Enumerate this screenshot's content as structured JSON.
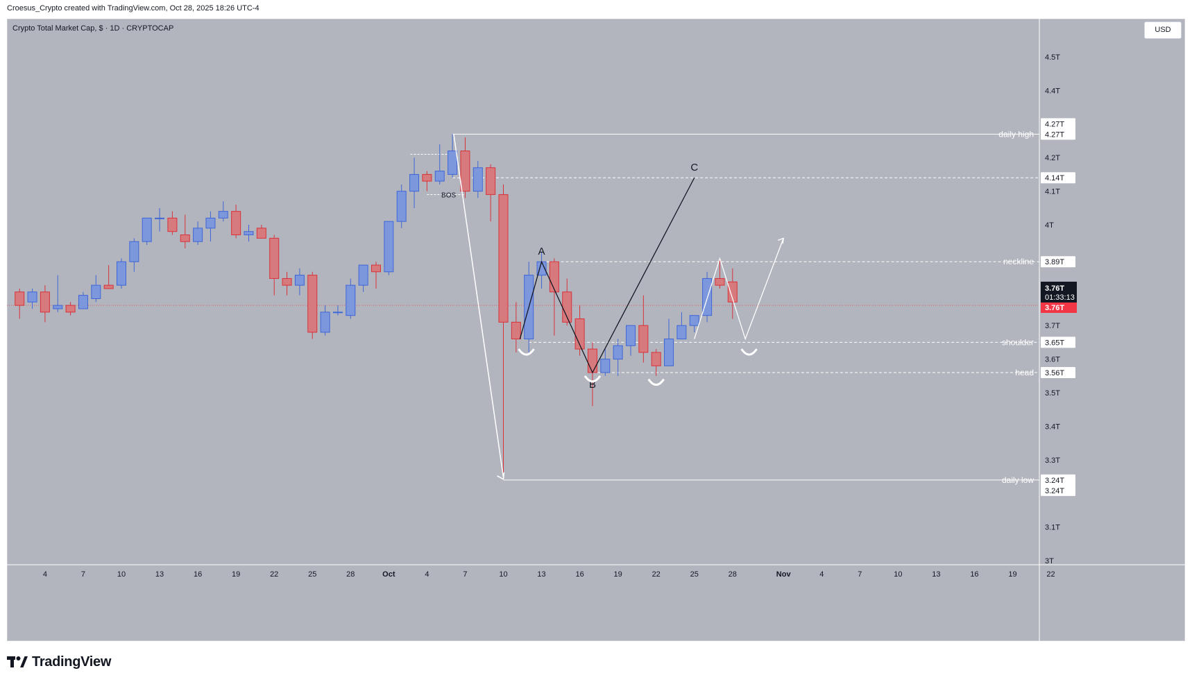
{
  "header": {
    "attribution": "Croesus_Crypto created with TradingView.com, Oct 28, 2025 18:26 UTC-4",
    "symbol_title": "Crypto Total Market Cap, $ · 1D · CRYPTOCAP",
    "currency": "USD",
    "brand": "TradingView"
  },
  "chart_data": {
    "type": "candlestick",
    "y_unit": "T",
    "ylim": [
      2.98,
      4.6
    ],
    "y_ticks": [
      {
        "value": 4.5,
        "label": "4.5T"
      },
      {
        "value": 4.4,
        "label": "4.4T"
      },
      {
        "value": 4.2,
        "label": "4.2T"
      },
      {
        "value": 4.1,
        "label": "4.1T"
      },
      {
        "value": 4.0,
        "label": "4T"
      },
      {
        "value": 3.7,
        "label": "3.7T"
      },
      {
        "value": 3.6,
        "label": "3.6T"
      },
      {
        "value": 3.5,
        "label": "3.5T"
      },
      {
        "value": 3.4,
        "label": "3.4T"
      },
      {
        "value": 3.3,
        "label": "3.3T"
      },
      {
        "value": 3.1,
        "label": "3.1T"
      },
      {
        "value": 3.0,
        "label": "3T"
      }
    ],
    "x_ticks": [
      {
        "day": 4,
        "label": "4"
      },
      {
        "day": 7,
        "label": "7"
      },
      {
        "day": 10,
        "label": "10"
      },
      {
        "day": 13,
        "label": "13"
      },
      {
        "day": 16,
        "label": "16"
      },
      {
        "day": 19,
        "label": "19"
      },
      {
        "day": 22,
        "label": "22"
      },
      {
        "day": 25,
        "label": "25"
      },
      {
        "day": 28,
        "label": "28"
      },
      {
        "day": 31,
        "label": "Oct"
      },
      {
        "day": 34,
        "label": "4"
      },
      {
        "day": 37,
        "label": "7"
      },
      {
        "day": 40,
        "label": "10"
      },
      {
        "day": 43,
        "label": "13"
      },
      {
        "day": 46,
        "label": "16"
      },
      {
        "day": 49,
        "label": "19"
      },
      {
        "day": 52,
        "label": "22"
      },
      {
        "day": 55,
        "label": "25"
      },
      {
        "day": 58,
        "label": "28"
      },
      {
        "day": 62,
        "label": "Nov"
      },
      {
        "day": 65,
        "label": "4"
      },
      {
        "day": 68,
        "label": "7"
      },
      {
        "day": 71,
        "label": "10"
      },
      {
        "day": 74,
        "label": "13"
      },
      {
        "day": 77,
        "label": "16"
      },
      {
        "day": 80,
        "label": "19"
      },
      {
        "day": 83,
        "label": "22"
      }
    ],
    "candles": [
      {
        "day": 2,
        "o": 3.8,
        "h": 3.81,
        "l": 3.72,
        "c": 3.76
      },
      {
        "day": 3,
        "o": 3.77,
        "h": 3.81,
        "l": 3.75,
        "c": 3.8
      },
      {
        "day": 4,
        "o": 3.8,
        "h": 3.82,
        "l": 3.71,
        "c": 3.74
      },
      {
        "day": 5,
        "o": 3.75,
        "h": 3.85,
        "l": 3.74,
        "c": 3.76
      },
      {
        "day": 6,
        "o": 3.76,
        "h": 3.77,
        "l": 3.73,
        "c": 3.74
      },
      {
        "day": 7,
        "o": 3.75,
        "h": 3.8,
        "l": 3.75,
        "c": 3.79
      },
      {
        "day": 8,
        "o": 3.78,
        "h": 3.85,
        "l": 3.77,
        "c": 3.82
      },
      {
        "day": 9,
        "o": 3.82,
        "h": 3.88,
        "l": 3.81,
        "c": 3.81
      },
      {
        "day": 10,
        "o": 3.82,
        "h": 3.9,
        "l": 3.81,
        "c": 3.89
      },
      {
        "day": 11,
        "o": 3.89,
        "h": 3.96,
        "l": 3.86,
        "c": 3.95
      },
      {
        "day": 12,
        "o": 3.95,
        "h": 4.02,
        "l": 3.94,
        "c": 4.02
      },
      {
        "day": 13,
        "o": 4.02,
        "h": 4.05,
        "l": 3.98,
        "c": 4.02
      },
      {
        "day": 14,
        "o": 4.02,
        "h": 4.04,
        "l": 3.97,
        "c": 3.98
      },
      {
        "day": 15,
        "o": 3.97,
        "h": 4.03,
        "l": 3.93,
        "c": 3.95
      },
      {
        "day": 16,
        "o": 3.95,
        "h": 4.01,
        "l": 3.94,
        "c": 3.99
      },
      {
        "day": 17,
        "o": 3.99,
        "h": 4.04,
        "l": 3.95,
        "c": 4.02
      },
      {
        "day": 18,
        "o": 4.02,
        "h": 4.07,
        "l": 4.01,
        "c": 4.04
      },
      {
        "day": 19,
        "o": 4.04,
        "h": 4.06,
        "l": 3.96,
        "c": 3.97
      },
      {
        "day": 20,
        "o": 3.97,
        "h": 4.0,
        "l": 3.95,
        "c": 3.98
      },
      {
        "day": 21,
        "o": 3.99,
        "h": 4.0,
        "l": 3.96,
        "c": 3.96
      },
      {
        "day": 22,
        "o": 3.96,
        "h": 3.97,
        "l": 3.79,
        "c": 3.84
      },
      {
        "day": 23,
        "o": 3.84,
        "h": 3.86,
        "l": 3.79,
        "c": 3.82
      },
      {
        "day": 24,
        "o": 3.82,
        "h": 3.87,
        "l": 3.79,
        "c": 3.85
      },
      {
        "day": 25,
        "o": 3.85,
        "h": 3.86,
        "l": 3.66,
        "c": 3.68
      },
      {
        "day": 26,
        "o": 3.68,
        "h": 3.76,
        "l": 3.67,
        "c": 3.74
      },
      {
        "day": 27,
        "o": 3.74,
        "h": 3.76,
        "l": 3.73,
        "c": 3.74
      },
      {
        "day": 28,
        "o": 3.73,
        "h": 3.84,
        "l": 3.72,
        "c": 3.82
      },
      {
        "day": 29,
        "o": 3.82,
        "h": 3.88,
        "l": 3.8,
        "c": 3.88
      },
      {
        "day": 30,
        "o": 3.88,
        "h": 3.89,
        "l": 3.81,
        "c": 3.86
      },
      {
        "day": 31,
        "o": 3.86,
        "h": 4.01,
        "l": 3.85,
        "c": 4.01
      },
      {
        "day": 32,
        "o": 4.01,
        "h": 4.12,
        "l": 3.99,
        "c": 4.1
      },
      {
        "day": 33,
        "o": 4.1,
        "h": 4.2,
        "l": 4.05,
        "c": 4.15
      },
      {
        "day": 34,
        "o": 4.15,
        "h": 4.16,
        "l": 4.1,
        "c": 4.13
      },
      {
        "day": 35,
        "o": 4.13,
        "h": 4.24,
        "l": 4.12,
        "c": 4.16
      },
      {
        "day": 36,
        "o": 4.15,
        "h": 4.27,
        "l": 4.14,
        "c": 4.22
      },
      {
        "day": 37,
        "o": 4.22,
        "h": 4.26,
        "l": 4.08,
        "c": 4.1
      },
      {
        "day": 38,
        "o": 4.1,
        "h": 4.19,
        "l": 4.08,
        "c": 4.17
      },
      {
        "day": 39,
        "o": 4.17,
        "h": 4.18,
        "l": 4.01,
        "c": 4.09
      },
      {
        "day": 40,
        "o": 4.09,
        "h": 4.12,
        "l": 3.24,
        "c": 3.71
      },
      {
        "day": 41,
        "o": 3.71,
        "h": 3.77,
        "l": 3.62,
        "c": 3.66
      },
      {
        "day": 42,
        "o": 3.66,
        "h": 3.89,
        "l": 3.62,
        "c": 3.85
      },
      {
        "day": 43,
        "o": 3.85,
        "h": 3.92,
        "l": 3.81,
        "c": 3.89
      },
      {
        "day": 44,
        "o": 3.89,
        "h": 3.9,
        "l": 3.67,
        "c": 3.8
      },
      {
        "day": 45,
        "o": 3.8,
        "h": 3.84,
        "l": 3.7,
        "c": 3.71
      },
      {
        "day": 46,
        "o": 3.72,
        "h": 3.76,
        "l": 3.61,
        "c": 3.63
      },
      {
        "day": 47,
        "o": 3.63,
        "h": 3.65,
        "l": 3.46,
        "c": 3.56
      },
      {
        "day": 48,
        "o": 3.56,
        "h": 3.63,
        "l": 3.55,
        "c": 3.6
      },
      {
        "day": 49,
        "o": 3.6,
        "h": 3.66,
        "l": 3.55,
        "c": 3.64
      },
      {
        "day": 50,
        "o": 3.64,
        "h": 3.7,
        "l": 3.61,
        "c": 3.7
      },
      {
        "day": 51,
        "o": 3.7,
        "h": 3.79,
        "l": 3.59,
        "c": 3.62
      },
      {
        "day": 52,
        "o": 3.62,
        "h": 3.63,
        "l": 3.55,
        "c": 3.58
      },
      {
        "day": 53,
        "o": 3.58,
        "h": 3.72,
        "l": 3.58,
        "c": 3.66
      },
      {
        "day": 54,
        "o": 3.66,
        "h": 3.74,
        "l": 3.66,
        "c": 3.7
      },
      {
        "day": 55,
        "o": 3.7,
        "h": 3.73,
        "l": 3.68,
        "c": 3.73
      },
      {
        "day": 56,
        "o": 3.73,
        "h": 3.86,
        "l": 3.71,
        "c": 3.84
      },
      {
        "day": 57,
        "o": 3.84,
        "h": 3.9,
        "l": 3.81,
        "c": 3.82
      },
      {
        "day": 58,
        "o": 3.83,
        "h": 3.87,
        "l": 3.72,
        "c": 3.77
      }
    ],
    "current_price": 3.76,
    "price_labels": [
      {
        "value": 4.27,
        "label": "4.27T",
        "tag": "daily high",
        "kind": "level"
      },
      {
        "value": 4.14,
        "label": "4.14T",
        "tag": "",
        "kind": "level"
      },
      {
        "value": 3.89,
        "label": "3.89T",
        "tag": "neckline",
        "kind": "level"
      },
      {
        "value": 3.65,
        "label": "3.65T",
        "tag": "shoulder",
        "kind": "level"
      },
      {
        "value": 3.56,
        "label": "3.56T",
        "tag": "head",
        "kind": "level"
      },
      {
        "value": 3.24,
        "label": "3.24T",
        "tag": "daily low",
        "kind": "level"
      }
    ],
    "price_box": {
      "value": "3.76T",
      "countdown": "01:33:13",
      "last": "3.76T"
    },
    "annotations": {
      "points": [
        {
          "label": "A",
          "day": 43,
          "value": 3.89
        },
        {
          "label": "B",
          "day": 47,
          "value": 3.56
        },
        {
          "label": "C",
          "day": 55,
          "value": 4.14
        }
      ],
      "bos_label": "BOS"
    }
  }
}
